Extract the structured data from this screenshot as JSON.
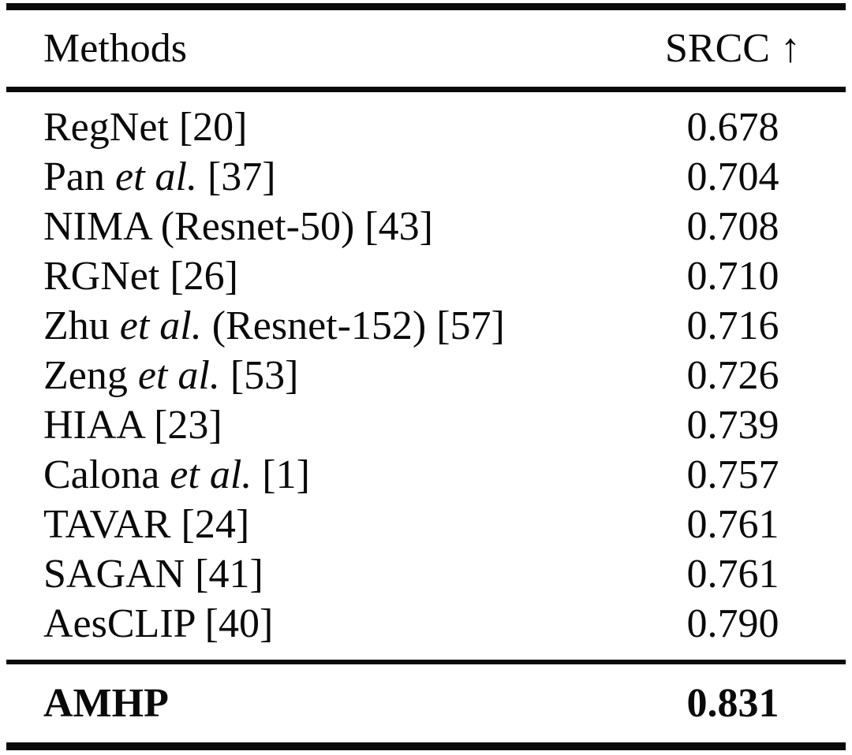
{
  "table": {
    "header": {
      "methods_label": "Methods",
      "score_label": "SRCC ↑"
    },
    "rows": [
      {
        "name_before": "RegNet [20]",
        "name_italic": "",
        "name_after": "",
        "value": "0.678"
      },
      {
        "name_before": "Pan ",
        "name_italic": "et al.",
        "name_after": " [37]",
        "value": "0.704"
      },
      {
        "name_before": "NIMA (Resnet-50) [43]",
        "name_italic": "",
        "name_after": "",
        "value": "0.708"
      },
      {
        "name_before": "RGNet [26]",
        "name_italic": "",
        "name_after": "",
        "value": "0.710"
      },
      {
        "name_before": "Zhu ",
        "name_italic": "et al.",
        "name_after": " (Resnet-152) [57]",
        "value": "0.716"
      },
      {
        "name_before": "Zeng ",
        "name_italic": "et al.",
        "name_after": " [53]",
        "value": "0.726"
      },
      {
        "name_before": "HIAA [23]",
        "name_italic": "",
        "name_after": "",
        "value": "0.739"
      },
      {
        "name_before": "Calona ",
        "name_italic": "et al.",
        "name_after": " [1]",
        "value": "0.757"
      },
      {
        "name_before": "TAVAR [24]",
        "name_italic": "",
        "name_after": "",
        "value": "0.761"
      },
      {
        "name_before": "SAGAN [41]",
        "name_italic": "",
        "name_after": "",
        "value": "0.761"
      },
      {
        "name_before": "AesCLIP [40]",
        "name_italic": "",
        "name_after": "",
        "value": "0.790"
      }
    ],
    "footer": {
      "method": "AMHP",
      "value": "0.831"
    }
  },
  "colors": {
    "text": "#0a0a0a",
    "rule": "#0a0a0a",
    "background": "#ffffff"
  }
}
